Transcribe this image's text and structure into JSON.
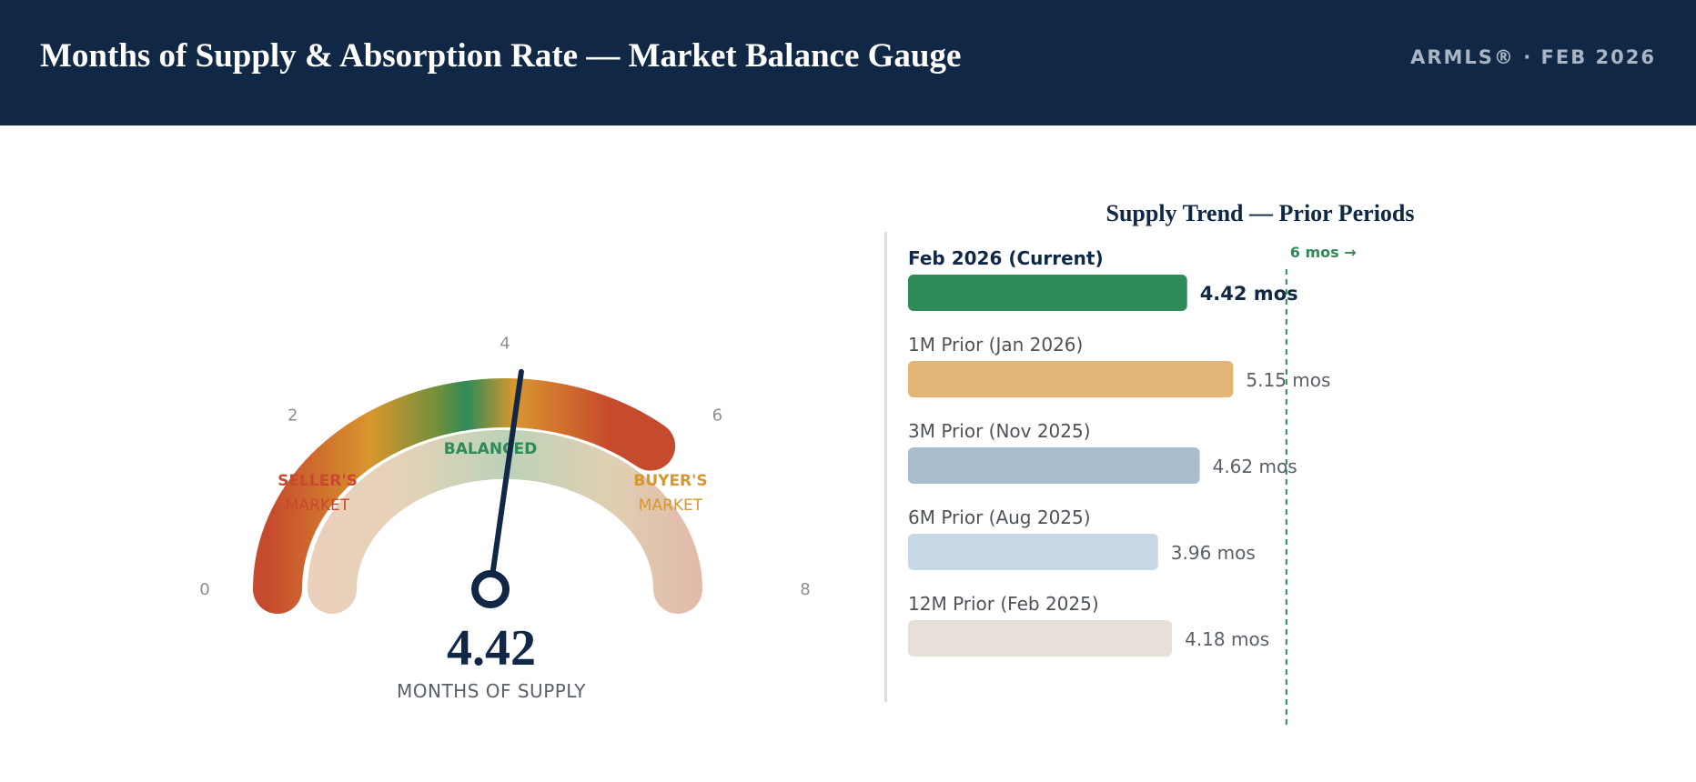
{
  "header": {
    "title": "Months of Supply & Absorption Rate — Market Balance Gauge",
    "source_tag": "ARMLS® · FEB 2026"
  },
  "gauge": {
    "value": 4.42,
    "value_label": "4.42",
    "caption": "MONTHS OF SUPPLY",
    "min": 0,
    "max": 8,
    "ticks": [
      {
        "value": 0,
        "label": "0"
      },
      {
        "value": 2,
        "label": "2"
      },
      {
        "value": 4,
        "label": "4"
      },
      {
        "value": 6,
        "label": "6"
      },
      {
        "value": 8,
        "label": "8"
      }
    ],
    "zones": {
      "sellers": [
        "SELLER'S",
        "MARKET"
      ],
      "balanced": "BALANCED",
      "buyers": [
        "BUYER'S",
        "MARKET"
      ]
    },
    "colors": {
      "sellers": "#c64a2d",
      "balanced": "#2e8b57",
      "buyers": "#d9962e",
      "needle": "#102846"
    }
  },
  "chart_data": {
    "type": "bar",
    "orientation": "horizontal",
    "title": "Supply Trend — Prior Periods",
    "unit": "mos",
    "reference_line": {
      "value": 6,
      "label": "6 mos →"
    },
    "bars": [
      {
        "label": "Feb 2026 (Current)",
        "value": 4.42,
        "value_label": "4.42 mos",
        "color": "#2e8b57",
        "current": true
      },
      {
        "label": "1M Prior (Jan 2026)",
        "value": 5.15,
        "value_label": "5.15 mos",
        "color": "#e2b577",
        "current": false
      },
      {
        "label": "3M Prior (Nov 2025)",
        "value": 4.62,
        "value_label": "4.62 mos",
        "color": "#a8bdcd",
        "current": false
      },
      {
        "label": "6M Prior (Aug 2025)",
        "value": 3.96,
        "value_label": "3.96 mos",
        "color": "#c7d7e3",
        "current": false
      },
      {
        "label": "12M Prior (Feb 2025)",
        "value": 4.18,
        "value_label": "4.18 mos",
        "color": "#e6e0d8",
        "current": false
      }
    ]
  }
}
